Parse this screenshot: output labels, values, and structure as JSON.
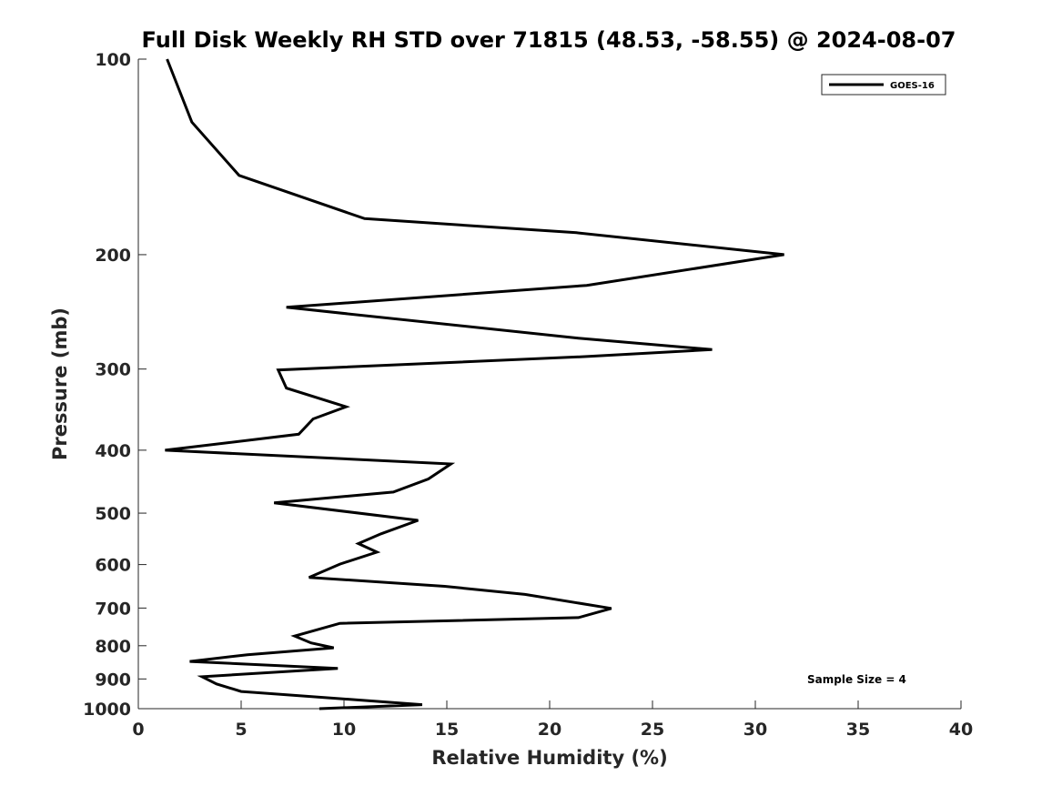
{
  "chart_data": {
    "type": "line",
    "title": "Full Disk Weekly RH STD over 71815 (48.53, -58.55) @ 2024-08-07",
    "xlabel": "Relative Humidity (%)",
    "ylabel": "Pressure (mb)",
    "xlim": [
      0,
      40
    ],
    "ylim": [
      100,
      1000
    ],
    "y_scale": "log",
    "y_reversed": true,
    "x_ticks": [
      "0",
      "5",
      "10",
      "15",
      "20",
      "25",
      "30",
      "35",
      "40"
    ],
    "y_ticks": [
      "100",
      "200",
      "300",
      "400",
      "500",
      "600",
      "700",
      "800",
      "900",
      "1000"
    ],
    "grid": false,
    "legend_position": "top-right",
    "series": [
      {
        "name": "GOES-16",
        "color": "#000000",
        "points": [
          [
            1.4,
            100
          ],
          [
            2.6,
            125
          ],
          [
            4.9,
            151
          ],
          [
            11.0,
            176
          ],
          [
            21.3,
            185
          ],
          [
            31.4,
            200
          ],
          [
            21.8,
            223
          ],
          [
            7.2,
            241
          ],
          [
            21.4,
            269
          ],
          [
            27.9,
            280
          ],
          [
            21.8,
            287
          ],
          [
            6.8,
            301
          ],
          [
            7.2,
            321
          ],
          [
            10.1,
            343
          ],
          [
            8.5,
            358
          ],
          [
            7.8,
            378
          ],
          [
            1.3,
            400
          ],
          [
            15.2,
            420
          ],
          [
            14.1,
            443
          ],
          [
            12.4,
            464
          ],
          [
            6.6,
            482
          ],
          [
            13.6,
            513
          ],
          [
            11.8,
            538
          ],
          [
            10.7,
            557
          ],
          [
            11.6,
            574
          ],
          [
            9.8,
            599
          ],
          [
            8.3,
            628
          ],
          [
            14.9,
            648
          ],
          [
            18.8,
            667
          ],
          [
            23.0,
            701
          ],
          [
            21.4,
            724
          ],
          [
            9.8,
            739
          ],
          [
            7.6,
            773
          ],
          [
            8.4,
            792
          ],
          [
            9.5,
            806
          ],
          [
            5.3,
            826
          ],
          [
            2.5,
            846
          ],
          [
            9.7,
            867
          ],
          [
            3.1,
            893
          ],
          [
            3.8,
            916
          ],
          [
            5.0,
            941
          ],
          [
            13.8,
            986
          ],
          [
            8.8,
            1000
          ]
        ]
      }
    ],
    "annotations": [
      "Sample Size = 4"
    ]
  }
}
